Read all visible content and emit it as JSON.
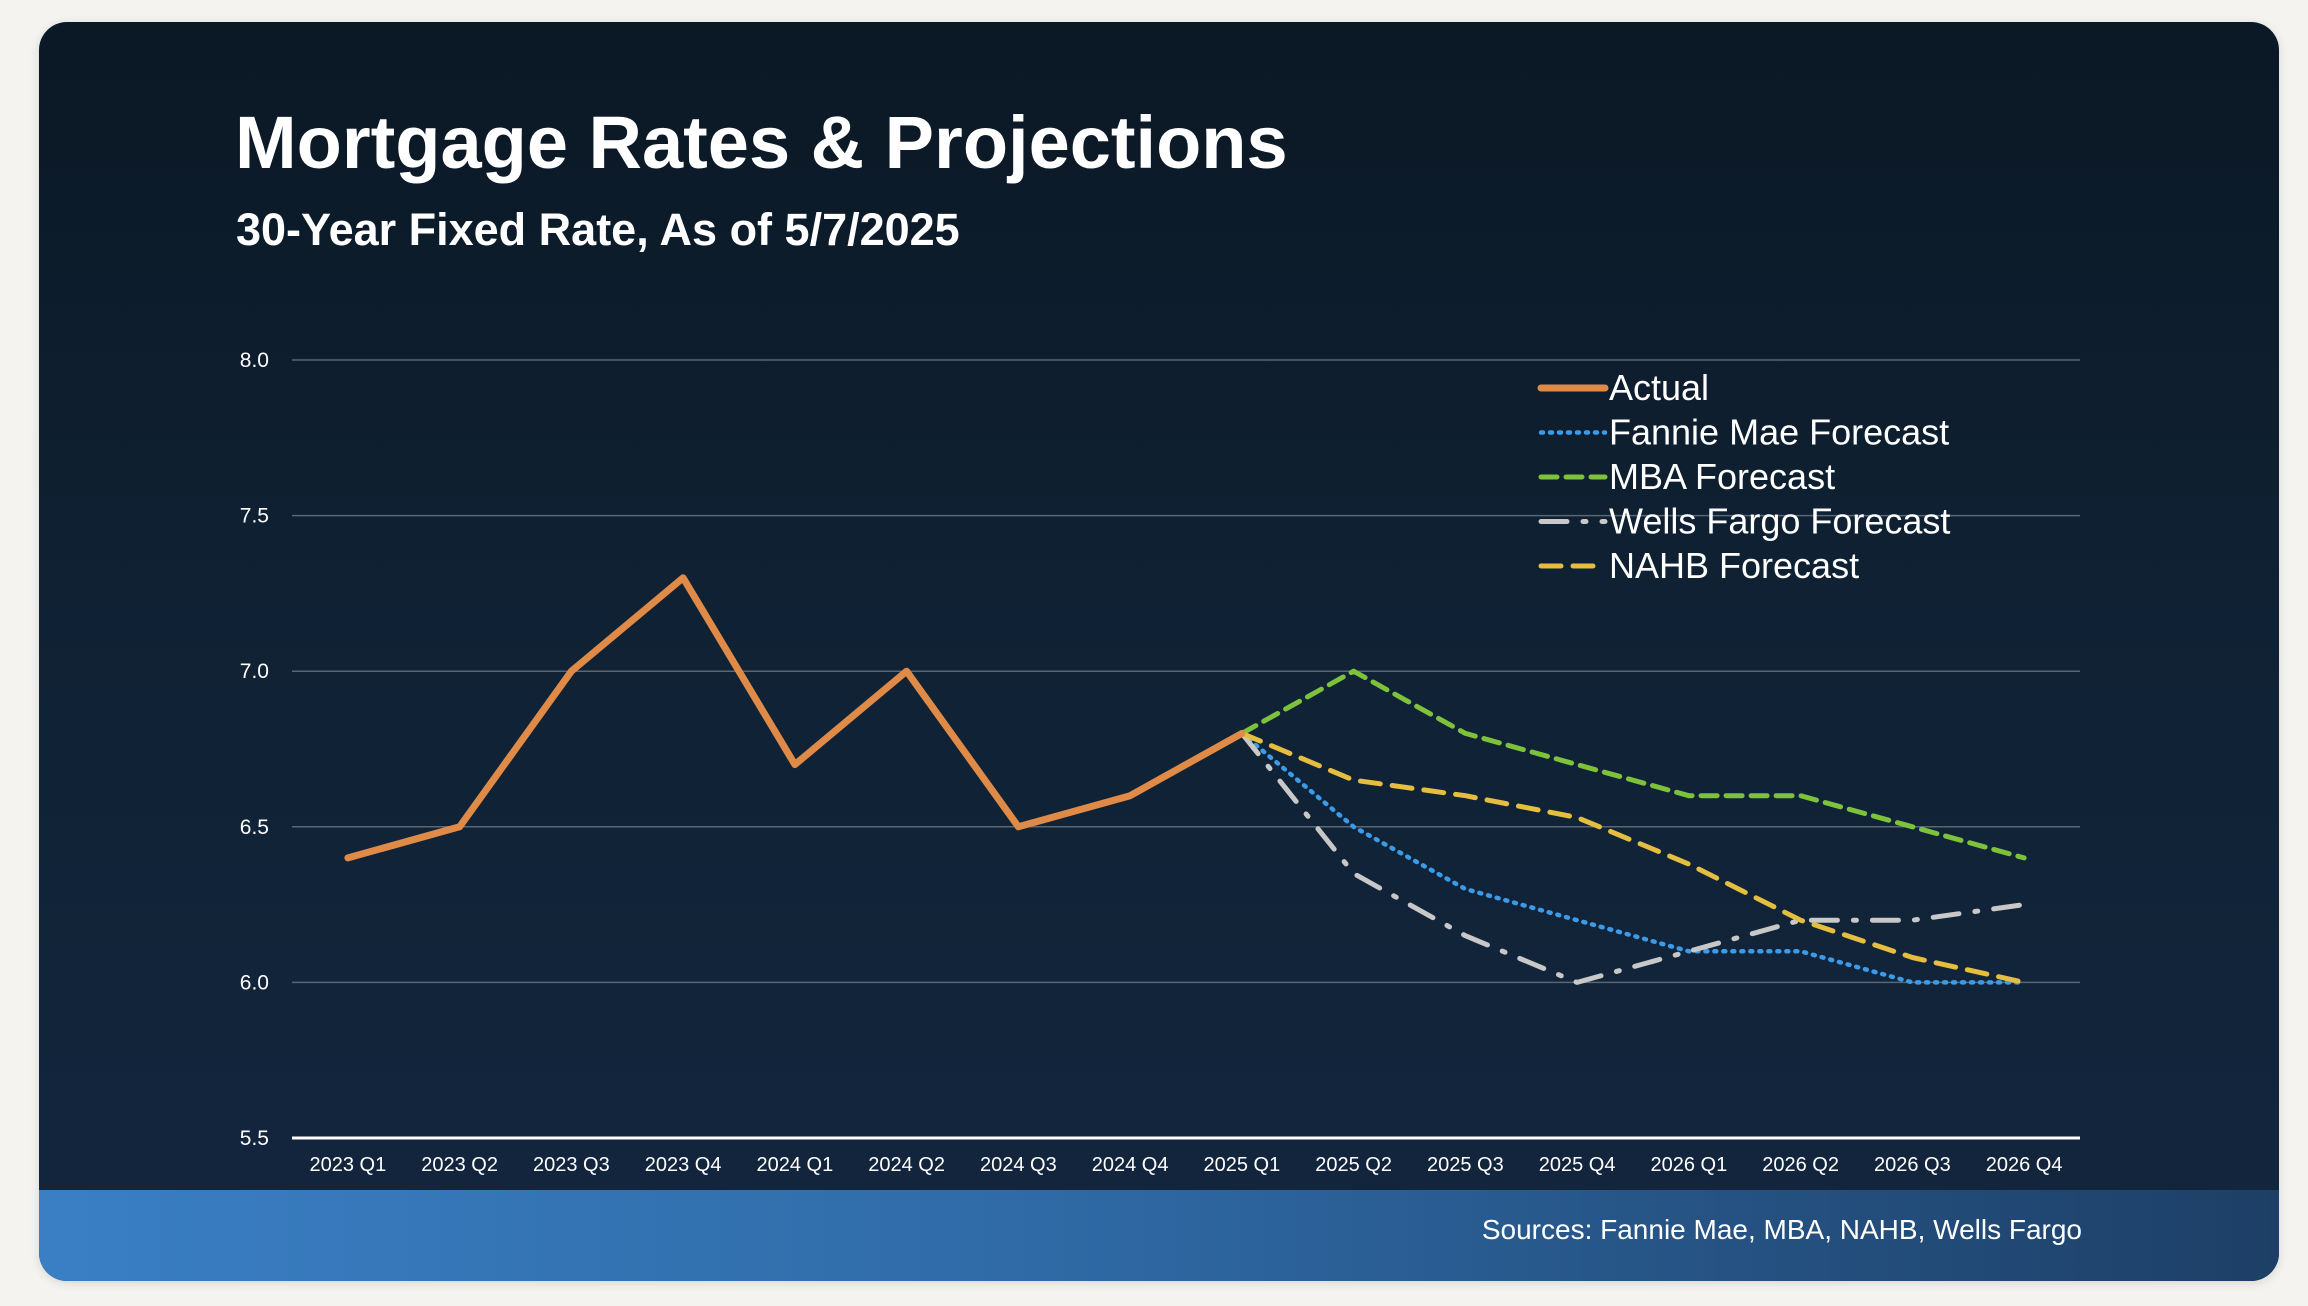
{
  "chart_data": {
    "type": "line",
    "title": "Mortgage Rates & Projections",
    "subtitle": "30-Year Fixed Rate, As of 5/7/2025",
    "categories": [
      "2023 Q1",
      "2023 Q2",
      "2023 Q3",
      "2023 Q4",
      "2024 Q1",
      "2024 Q2",
      "2024 Q3",
      "2024 Q4",
      "2025 Q1",
      "2025 Q2",
      "2025 Q3",
      "2025 Q4",
      "2026 Q1",
      "2026 Q2",
      "2026 Q3",
      "2026 Q4"
    ],
    "y_ticks": [
      "5.5",
      "6.0",
      "6.5",
      "7.0",
      "7.5",
      "8.0"
    ],
    "ylim": [
      5.5,
      8.0
    ],
    "grid": true,
    "legend_position": "top-right",
    "series": [
      {
        "name": "Actual",
        "color": "#e08a47",
        "style": "solid",
        "values": [
          6.4,
          6.5,
          7.0,
          7.3,
          6.7,
          7.0,
          6.5,
          6.6,
          6.8,
          null,
          null,
          null,
          null,
          null,
          null,
          null
        ]
      },
      {
        "name": "Fannie Mae Forecast",
        "color": "#3b9be8",
        "style": "dotted",
        "values": [
          null,
          null,
          null,
          null,
          null,
          null,
          null,
          null,
          6.8,
          6.5,
          6.3,
          6.2,
          6.1,
          6.1,
          6.0,
          6.0
        ]
      },
      {
        "name": "MBA Forecast",
        "color": "#7dc23a",
        "style": "dashed",
        "values": [
          null,
          null,
          null,
          null,
          null,
          null,
          null,
          null,
          6.8,
          7.0,
          6.8,
          6.7,
          6.6,
          6.6,
          6.5,
          6.4
        ]
      },
      {
        "name": "Wells Fargo Forecast",
        "color": "#c8c8c8",
        "style": "dashdot",
        "values": [
          null,
          null,
          null,
          null,
          null,
          null,
          null,
          null,
          6.8,
          6.35,
          6.15,
          6.0,
          6.1,
          6.2,
          6.2,
          6.25
        ]
      },
      {
        "name": "NAHB Forecast",
        "color": "#e6be3f",
        "style": "longdash",
        "values": [
          null,
          null,
          null,
          null,
          null,
          null,
          null,
          null,
          6.8,
          6.65,
          6.6,
          6.53,
          6.38,
          6.2,
          6.08,
          6.0
        ]
      }
    ]
  },
  "footer": {
    "source": "Sources: Fannie Mae, MBA, NAHB, Wells Fargo"
  }
}
